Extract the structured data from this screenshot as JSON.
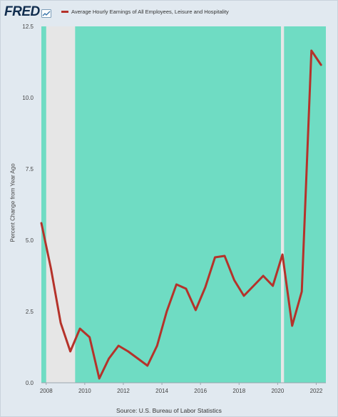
{
  "header": {
    "logo_text": "FRED",
    "legend_label": "Average Hourly Earnings of All Employees, Leisure and Hospitality"
  },
  "icons": {
    "logo": "fred-graph-icon",
    "legend": "legend-line-swatch"
  },
  "colors": {
    "plot_background": "#6fdcc3",
    "recession_band": "#e6e6e6",
    "series_line": "#b5322a",
    "frame_background": "#e1e9f0"
  },
  "source": "Source: U.S. Bureau of Labor Statistics",
  "chart_data": {
    "type": "line",
    "title": "",
    "xlabel": "",
    "ylabel": "Percent Change from Year Ago",
    "xlim": [
      2007.75,
      2022.5
    ],
    "ylim": [
      0,
      12.5
    ],
    "x_ticks": [
      2008,
      2010,
      2012,
      2014,
      2016,
      2018,
      2020,
      2022
    ],
    "y_ticks": [
      0.0,
      2.5,
      5.0,
      7.5,
      10.0,
      12.5
    ],
    "y_tick_labels": [
      "0.0",
      "2.5",
      "5.0",
      "7.5",
      "10.0",
      "12.5"
    ],
    "recessions": [
      [
        2008.0,
        2009.5
      ],
      [
        2020.17,
        2020.33
      ]
    ],
    "grid": false,
    "legend_position": "top",
    "series": [
      {
        "name": "Average Hourly Earnings of All Employees, Leisure and Hospitality",
        "x": [
          2007.75,
          2008.25,
          2008.75,
          2009.25,
          2009.75,
          2010.25,
          2010.75,
          2011.25,
          2011.75,
          2012.25,
          2012.75,
          2013.25,
          2013.75,
          2014.25,
          2014.75,
          2015.25,
          2015.75,
          2016.25,
          2016.75,
          2017.25,
          2017.75,
          2018.25,
          2018.75,
          2019.25,
          2019.75,
          2020.25,
          2020.75,
          2021.25,
          2021.75,
          2022.25
        ],
        "values": [
          5.6,
          4.0,
          2.1,
          1.1,
          1.9,
          1.6,
          0.15,
          0.85,
          1.3,
          1.1,
          0.85,
          0.6,
          1.3,
          2.5,
          3.45,
          3.3,
          2.55,
          3.35,
          4.4,
          4.45,
          3.6,
          3.05,
          3.4,
          3.75,
          3.4,
          4.5,
          2.0,
          3.2,
          11.65,
          11.15
        ]
      }
    ]
  }
}
